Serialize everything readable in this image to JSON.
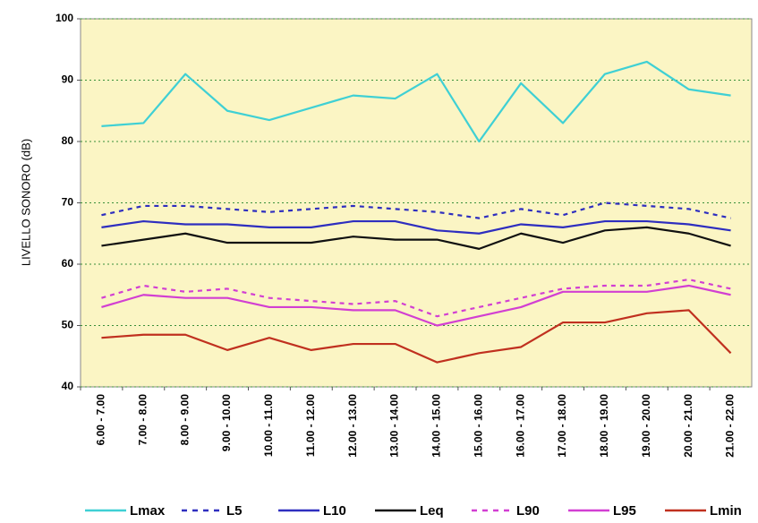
{
  "chart_data": {
    "type": "line",
    "y_label": "LIVELLO SONORO (dB)",
    "categories": [
      "6.00 - 7.00",
      "7.00 - 8.00",
      "8.00 - 9.00",
      "9.00 - 10.00",
      "10.00 - 11.00",
      "11.00 - 12.00",
      "12.00 - 13.00",
      "13.00 - 14.00",
      "14.00 - 15.00",
      "15.00 - 16.00",
      "16.00 - 17.00",
      "17.00 - 18.00",
      "18.00 - 19.00",
      "19.00 - 20.00",
      "20.00 - 21.00",
      "21.00 - 22.00"
    ],
    "series": [
      {
        "name": "Lmax",
        "color": "#3fd0d4",
        "dashed": false,
        "values": [
          82.5,
          83,
          91,
          85,
          83.5,
          85.5,
          87.5,
          87,
          91,
          80,
          89.5,
          83,
          91,
          93,
          88.5,
          87.5
        ]
      },
      {
        "name": "L5",
        "color": "#2e2ebf",
        "dashed": true,
        "values": [
          68,
          69.5,
          69.5,
          69,
          68.5,
          69,
          69.5,
          69,
          68.5,
          67.5,
          69,
          68,
          70,
          69.5,
          69,
          67.5
        ]
      },
      {
        "name": "L10",
        "color": "#2e2ebf",
        "dashed": false,
        "values": [
          66,
          67,
          66.5,
          66.5,
          66,
          66,
          67,
          67,
          65.5,
          65,
          66.5,
          66,
          67,
          67,
          66.5,
          65.5
        ]
      },
      {
        "name": "Leq",
        "color": "#111111",
        "dashed": false,
        "values": [
          63,
          64,
          65,
          63.5,
          63.5,
          63.5,
          64.5,
          64,
          64,
          62.5,
          65,
          63.5,
          65.5,
          66,
          65,
          63
        ]
      },
      {
        "name": "L90",
        "color": "#d23fd2",
        "dashed": true,
        "values": [
          54.5,
          56.5,
          55.5,
          56,
          54.5,
          54,
          53.5,
          54,
          51.5,
          53,
          54.5,
          56,
          56.5,
          56.5,
          57.5,
          56
        ]
      },
      {
        "name": "L95",
        "color": "#d23fd2",
        "dashed": false,
        "values": [
          53,
          55,
          54.5,
          54.5,
          53,
          53,
          52.5,
          52.5,
          50,
          51.5,
          53,
          55.5,
          55.5,
          55.5,
          56.5,
          55
        ]
      },
      {
        "name": "Lmin",
        "color": "#c0301f",
        "dashed": false,
        "values": [
          48,
          48.5,
          48.5,
          46,
          48,
          46,
          47,
          47,
          44,
          45.5,
          46.5,
          50.5,
          50.5,
          52,
          52.5,
          45.5
        ]
      }
    ],
    "ylim": [
      40,
      100
    ],
    "yticks": [
      40,
      50,
      60,
      70,
      80,
      90,
      100
    ],
    "grid": true,
    "legend": "bottom"
  }
}
